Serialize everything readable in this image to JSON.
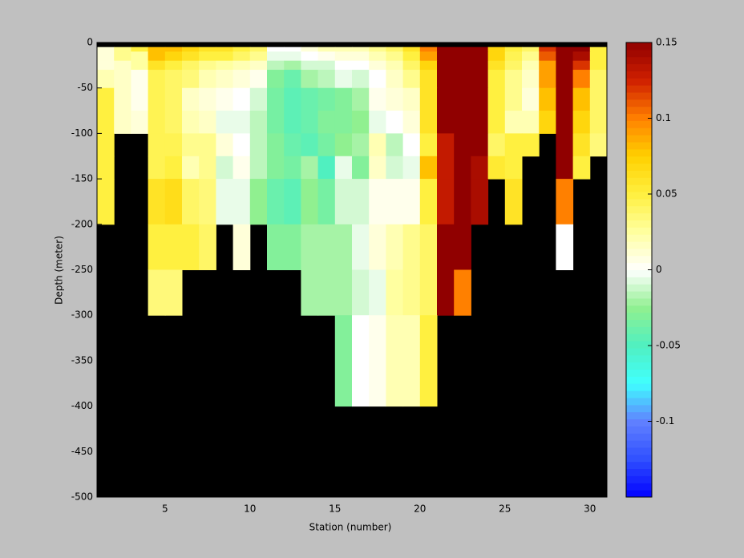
{
  "chart_data": {
    "type": "heatmap",
    "x_label": "Station (number)",
    "y_label": "Depth (meter)",
    "xlim": [
      1,
      31
    ],
    "ylim": [
      -500,
      0
    ],
    "xticks": [
      5,
      10,
      15,
      20,
      25,
      30
    ],
    "yticks": [
      0,
      -50,
      -100,
      -150,
      -200,
      -250,
      -300,
      -350,
      -400,
      -450,
      -500
    ],
    "x_edges": [
      1,
      2,
      3,
      4,
      5,
      6,
      7,
      8,
      9,
      10,
      11,
      12,
      13,
      14,
      15,
      16,
      17,
      18,
      19,
      20,
      21,
      22,
      23,
      24,
      25,
      26,
      27,
      28,
      29,
      30,
      31
    ],
    "y_edges": [
      0,
      -5,
      -10,
      -20,
      -30,
      -50,
      -75,
      -100,
      -125,
      -150,
      -200,
      -250,
      -300,
      -400,
      -500
    ],
    "clim": [
      -0.15,
      0.15
    ],
    "cticks": [
      0.15,
      0.1,
      0.05,
      0,
      -0.05,
      -0.1
    ],
    "colormap": [
      "#0000ff",
      "#3050ff",
      "#6080ff",
      "#40ffff",
      "#50f0c0",
      "#90f090",
      "#ffffff",
      "#ffffa0",
      "#fff040",
      "#ffd000",
      "#ff8000",
      "#d02000",
      "#900000"
    ],
    "missing_color": "#000000",
    "z": [
      [
        null,
        null,
        null,
        null,
        null,
        null,
        null,
        null,
        null,
        null,
        null,
        null,
        null,
        null,
        null,
        null,
        null,
        null,
        null,
        null,
        null,
        null,
        null,
        null,
        null,
        null,
        null,
        null,
        null,
        null
      ],
      [
        0.01,
        0.03,
        0.05,
        0.08,
        0.08,
        0.07,
        0.06,
        0.06,
        0.05,
        0.04,
        0.0,
        0.0,
        0.01,
        0.02,
        0.02,
        0.02,
        0.03,
        0.04,
        0.06,
        0.1,
        0.15,
        0.15,
        0.15,
        0.07,
        0.05,
        0.04,
        0.12,
        0.15,
        0.15,
        0.05
      ],
      [
        0.01,
        0.03,
        0.025,
        0.08,
        0.07,
        0.06,
        0.05,
        0.05,
        0.04,
        0.03,
        -0.005,
        -0.005,
        0.0,
        0.005,
        0.01,
        0.01,
        0.02,
        0.03,
        0.05,
        0.09,
        0.15,
        0.15,
        0.15,
        0.07,
        0.045,
        0.03,
        0.11,
        0.15,
        0.14,
        0.05
      ],
      [
        0.01,
        0.015,
        0.025,
        0.06,
        0.05,
        0.04,
        0.03,
        0.025,
        0.02,
        0.015,
        -0.015,
        -0.02,
        -0.01,
        -0.01,
        0.0,
        0.0,
        0.01,
        0.02,
        0.04,
        0.07,
        0.15,
        0.15,
        0.15,
        0.06,
        0.04,
        0.02,
        0.09,
        0.15,
        0.12,
        0.05
      ],
      [
        0.02,
        0.015,
        0.005,
        0.045,
        0.04,
        0.035,
        0.02,
        0.015,
        0.01,
        0.005,
        -0.03,
        -0.04,
        -0.02,
        -0.015,
        -0.005,
        -0.01,
        0.0,
        0.015,
        0.03,
        0.06,
        0.15,
        0.15,
        0.15,
        0.05,
        0.03,
        0.015,
        0.09,
        0.15,
        0.1,
        0.04
      ],
      [
        0.05,
        0.015,
        0.005,
        0.045,
        0.04,
        0.015,
        0.01,
        0.005,
        0.0,
        -0.01,
        -0.035,
        -0.045,
        -0.04,
        -0.035,
        -0.03,
        -0.02,
        0.005,
        0.01,
        0.015,
        0.06,
        0.15,
        0.15,
        0.15,
        0.05,
        0.03,
        0.01,
        0.08,
        0.15,
        0.08,
        0.04
      ],
      [
        0.05,
        0.015,
        0.01,
        0.045,
        0.04,
        0.02,
        0.015,
        -0.005,
        -0.005,
        -0.015,
        -0.035,
        -0.045,
        -0.04,
        -0.03,
        -0.03,
        -0.025,
        -0.005,
        0.0,
        0.01,
        0.06,
        0.15,
        0.15,
        0.15,
        0.05,
        0.02,
        0.02,
        0.07,
        0.15,
        0.07,
        0.04
      ],
      [
        0.05,
        null,
        null,
        0.045,
        0.045,
        0.03,
        0.03,
        0.01,
        0.0,
        -0.015,
        -0.03,
        -0.04,
        -0.045,
        -0.035,
        -0.025,
        -0.02,
        0.02,
        -0.015,
        0.0,
        0.05,
        0.13,
        0.15,
        0.15,
        0.04,
        0.05,
        0.05,
        null,
        0.15,
        0.06,
        0.035
      ],
      [
        0.05,
        null,
        null,
        0.045,
        0.05,
        0.02,
        0.03,
        -0.01,
        0.005,
        -0.015,
        -0.03,
        -0.035,
        -0.02,
        -0.05,
        -0.005,
        -0.03,
        0.015,
        -0.01,
        -0.005,
        0.08,
        0.13,
        0.15,
        0.14,
        0.055,
        0.05,
        null,
        null,
        0.15,
        0.05,
        null
      ],
      [
        0.05,
        null,
        null,
        0.06,
        0.065,
        0.04,
        0.035,
        -0.005,
        -0.005,
        -0.025,
        -0.04,
        -0.045,
        -0.025,
        -0.035,
        -0.01,
        -0.01,
        0.005,
        0.005,
        0.005,
        0.05,
        0.13,
        0.15,
        0.14,
        null,
        0.06,
        null,
        null,
        0.1,
        null,
        null
      ],
      [
        null,
        null,
        null,
        0.05,
        0.05,
        0.05,
        0.04,
        null,
        0.01,
        null,
        -0.03,
        -0.03,
        -0.02,
        -0.02,
        -0.02,
        -0.005,
        0.01,
        0.02,
        0.03,
        0.04,
        0.15,
        0.15,
        null,
        null,
        null,
        null,
        null,
        0.0,
        null,
        null
      ],
      [
        null,
        null,
        null,
        0.035,
        0.035,
        null,
        null,
        null,
        null,
        null,
        null,
        null,
        -0.02,
        -0.02,
        -0.02,
        -0.01,
        -0.005,
        0.025,
        0.03,
        0.04,
        0.15,
        0.1,
        null,
        null,
        null,
        null,
        null,
        null,
        null,
        null
      ],
      [
        null,
        null,
        null,
        null,
        null,
        null,
        null,
        null,
        null,
        null,
        null,
        null,
        null,
        null,
        -0.03,
        0.0,
        0.005,
        0.02,
        0.02,
        0.05,
        null,
        null,
        null,
        null,
        null,
        null,
        null,
        null,
        null,
        null
      ],
      [
        null,
        null,
        null,
        null,
        null,
        null,
        null,
        null,
        null,
        null,
        null,
        null,
        null,
        null,
        null,
        null,
        null,
        null,
        null,
        null,
        null,
        null,
        null,
        null,
        null,
        null,
        null,
        null,
        null,
        null
      ]
    ]
  }
}
